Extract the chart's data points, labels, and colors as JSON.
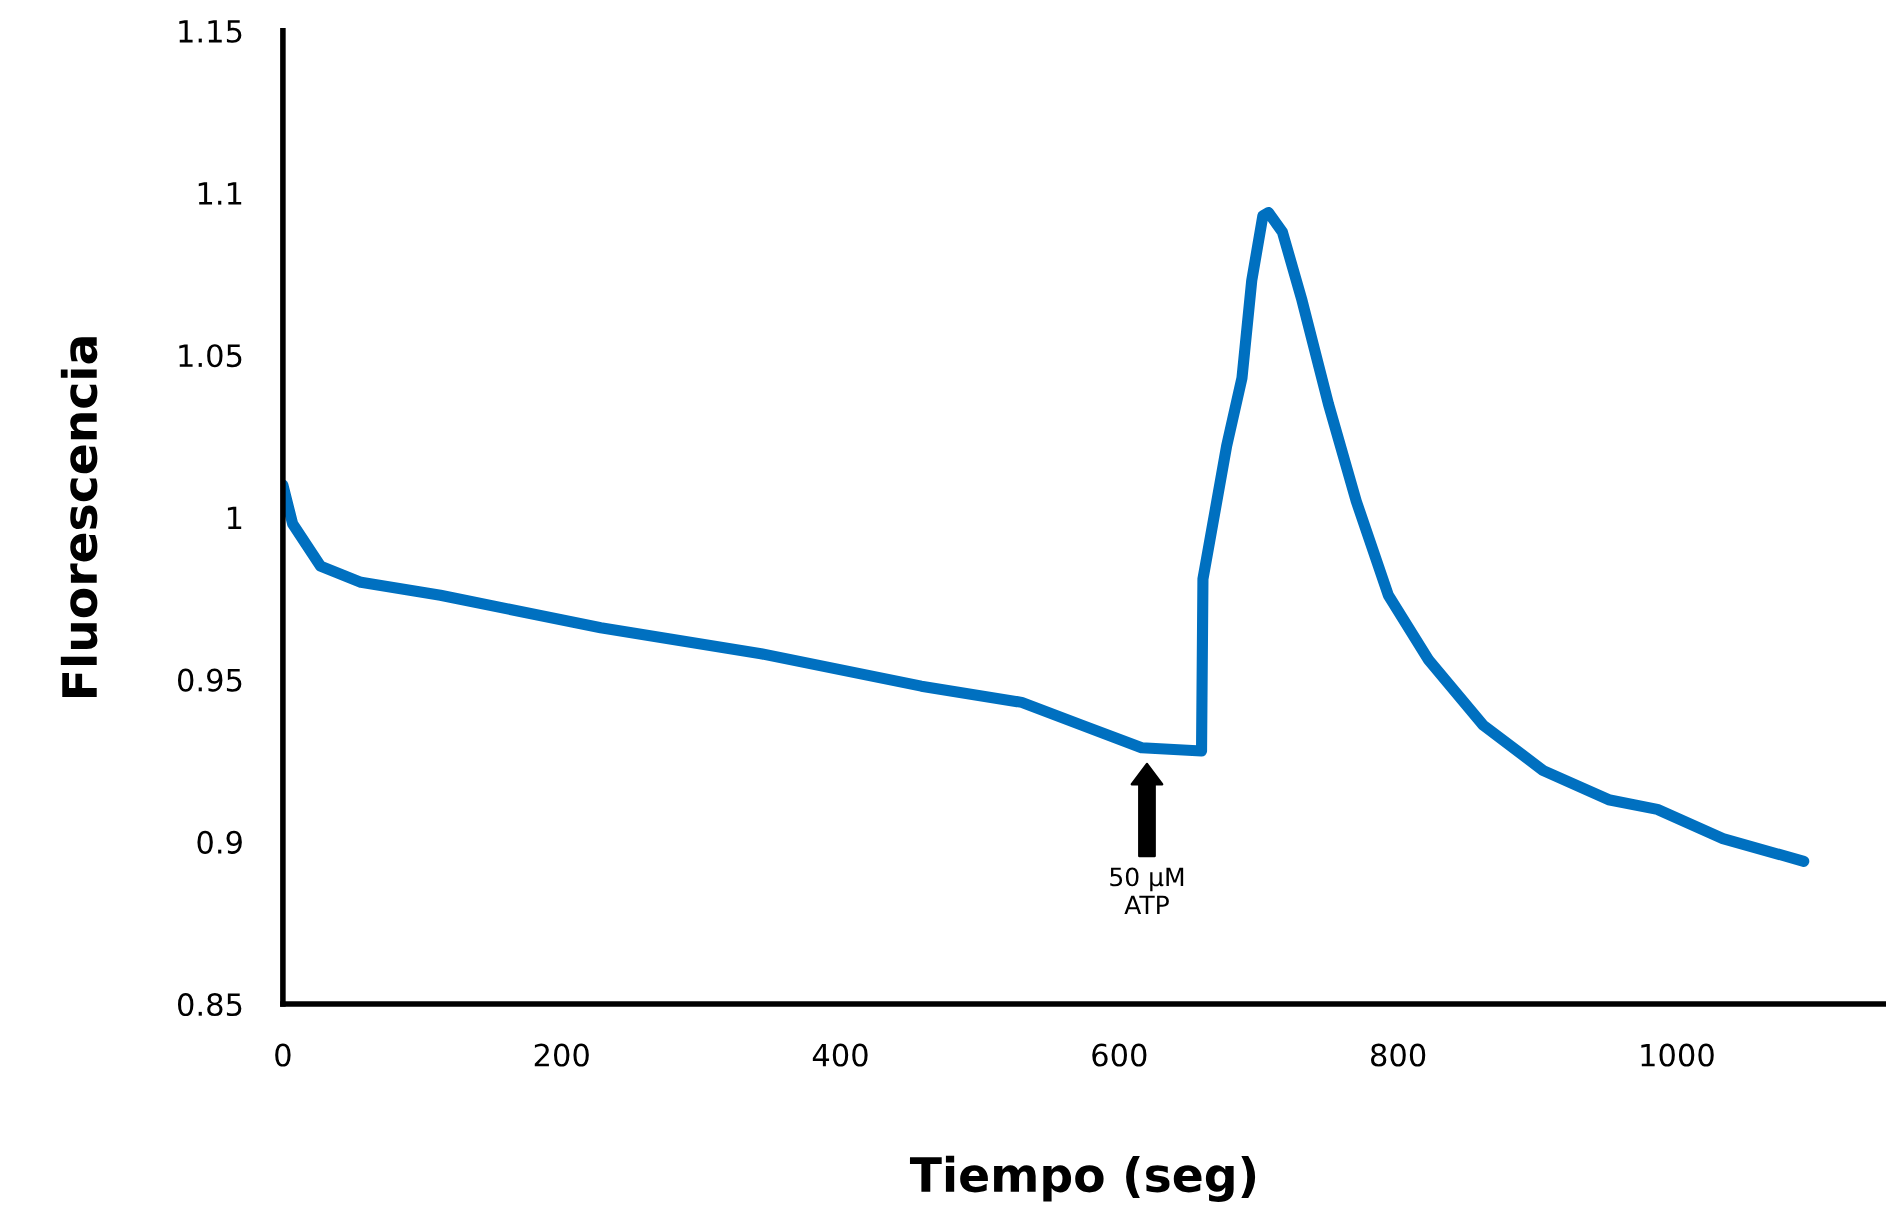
{
  "chart_data": {
    "type": "line",
    "xlabel": "Tiempo (seg)",
    "ylabel": "Fluorescencia",
    "xlim": [
      0,
      1150
    ],
    "ylim": [
      0.85,
      1.15
    ],
    "xticks": [
      0,
      200,
      400,
      600,
      800,
      1000
    ],
    "yticks": [
      {
        "value": 0.85,
        "label": "0.85"
      },
      {
        "value": 0.9,
        "label": "0.9"
      },
      {
        "value": 0.95,
        "label": "0.95"
      },
      {
        "value": 1,
        "label": "1"
      },
      {
        "value": 1.05,
        "label": "1.05"
      },
      {
        "value": 1.1,
        "label": "1.1"
      },
      {
        "value": 1.15,
        "label": "1.15"
      }
    ],
    "grid": false,
    "marker": "none",
    "line_style": "solid",
    "series": [
      {
        "color": "#0070c0",
        "x": [
          0,
          7,
          27,
          56,
          113,
          228,
          343,
          458,
          530,
          573,
          616,
          659,
          660,
          677,
          688,
          695,
          703,
          707,
          717,
          731,
          750,
          770,
          793,
          822,
          861,
          904,
          951,
          986,
          1033,
          1091
        ],
        "values": [
          1.01,
          0.998,
          0.985,
          0.98,
          0.976,
          0.966,
          0.958,
          0.948,
          0.943,
          0.936,
          0.929,
          0.928,
          0.981,
          1.022,
          1.043,
          1.073,
          1.093,
          1.094,
          1.088,
          1.067,
          1.035,
          1.005,
          0.976,
          0.956,
          0.936,
          0.922,
          0.913,
          0.91,
          0.901,
          0.894
        ]
      }
    ],
    "annotations": [
      "50 µM\nATP"
    ]
  }
}
